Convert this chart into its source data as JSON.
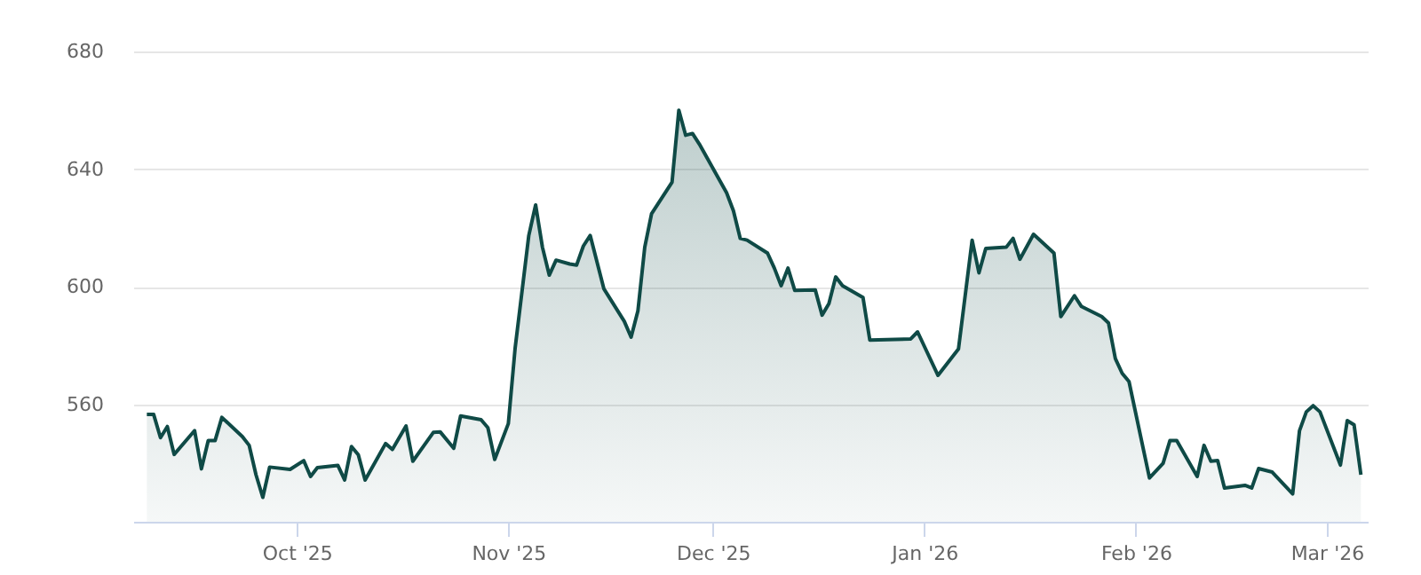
{
  "chart_data": {
    "type": "area",
    "color": "#0f4a46",
    "marker": "none",
    "line_style": "solid",
    "grid": "y",
    "xlim": [
      "2025-09-07",
      "2026-03-07"
    ],
    "xticks": [
      {
        "value": "2025-10-01",
        "label": "Oct '25"
      },
      {
        "value": "2025-11-01",
        "label": "Nov '25"
      },
      {
        "value": "2025-12-01",
        "label": "Dec '25"
      },
      {
        "value": "2026-01-01",
        "label": "Jan '26"
      },
      {
        "value": "2026-02-01",
        "label": "Feb '26"
      },
      {
        "value": "2026-03-01",
        "label": "Mar '26"
      }
    ],
    "ylim": [
      520,
      680
    ],
    "yticks": [
      560,
      600,
      640,
      680
    ],
    "x": [
      "2025-09-09",
      "2025-09-10",
      "2025-09-11",
      "2025-09-12",
      "2025-09-13",
      "2025-09-16",
      "2025-09-17",
      "2025-09-18",
      "2025-09-19",
      "2025-09-20",
      "2025-09-23",
      "2025-09-24",
      "2025-09-25",
      "2025-09-26",
      "2025-09-27",
      "2025-09-30",
      "2025-10-02",
      "2025-10-03",
      "2025-10-04",
      "2025-10-07",
      "2025-10-08",
      "2025-10-09",
      "2025-10-10",
      "2025-10-11",
      "2025-10-14",
      "2025-10-15",
      "2025-10-17",
      "2025-10-18",
      "2025-10-21",
      "2025-10-22",
      "2025-10-24",
      "2025-10-25",
      "2025-10-28",
      "2025-10-29",
      "2025-10-30",
      "2025-11-01",
      "2025-11-02",
      "2025-11-04",
      "2025-11-05",
      "2025-11-06",
      "2025-11-07",
      "2025-11-08",
      "2025-11-10",
      "2025-11-11",
      "2025-11-12",
      "2025-11-13",
      "2025-11-15",
      "2025-11-18",
      "2025-11-19",
      "2025-11-20",
      "2025-11-21",
      "2025-11-22",
      "2025-11-25",
      "2025-11-26",
      "2025-11-27",
      "2025-11-28",
      "2025-11-29",
      "2025-12-03",
      "2025-12-04",
      "2025-12-05",
      "2025-12-06",
      "2025-12-09",
      "2025-12-10",
      "2025-12-11",
      "2025-12-12",
      "2025-12-13",
      "2025-12-16",
      "2025-12-17",
      "2025-12-18",
      "2025-12-19",
      "2025-12-20",
      "2025-12-23",
      "2025-12-24",
      "2025-12-30",
      "2025-12-31",
      "2026-01-03",
      "2026-01-06",
      "2026-01-08",
      "2026-01-09",
      "2026-01-10",
      "2026-01-13",
      "2026-01-14",
      "2026-01-15",
      "2026-01-17",
      "2026-01-20",
      "2026-01-21",
      "2026-01-23",
      "2026-01-24",
      "2026-01-27",
      "2026-01-28",
      "2026-01-29",
      "2026-01-30",
      "2026-01-31",
      "2026-02-03",
      "2026-02-05",
      "2026-02-06",
      "2026-02-07",
      "2026-02-10",
      "2026-02-11",
      "2026-02-12",
      "2026-02-13",
      "2026-02-14",
      "2026-02-17",
      "2026-02-18",
      "2026-02-19",
      "2026-02-21",
      "2026-02-24",
      "2026-02-25",
      "2026-02-26",
      "2026-02-27",
      "2026-02-28",
      "2026-03-03",
      "2026-03-04",
      "2026-03-05",
      "2026-03-06"
    ],
    "values": [
      556.5,
      556.5,
      548.6,
      552.4,
      542.9,
      551,
      538,
      547.6,
      547.6,
      555.5,
      549,
      546,
      536,
      528.3,
      538.6,
      537.8,
      540.8,
      535.4,
      538.4,
      539.2,
      534.2,
      545.6,
      542.8,
      534.2,
      546.6,
      544.6,
      552.6,
      540.6,
      550.4,
      550.6,
      545,
      556,
      554.7,
      552,
      541.2,
      553.4,
      579.2,
      617.4,
      627.8,
      613.4,
      603.9,
      609,
      607.7,
      607.3,
      613.8,
      617.4,
      599.3,
      588.2,
      582.8,
      591.8,
      613.4,
      624.8,
      635.5,
      660,
      651.5,
      652.1,
      648.5,
      631.9,
      625.8,
      616.4,
      615.8,
      611.4,
      606.3,
      600.3,
      606.3,
      598.7,
      598.9,
      590.3,
      594.2,
      603.3,
      600.3,
      596.3,
      581.8,
      582.2,
      584.6,
      569.8,
      578.8,
      615.8,
      604.7,
      613,
      613.4,
      616.4,
      609.3,
      617.8,
      611.4,
      589.8,
      596.9,
      593.3,
      589.8,
      587.6,
      575.5,
      570.5,
      567.7,
      534.9,
      539.9,
      547.6,
      547.6,
      535.4,
      546,
      540.6,
      540.8,
      531.5,
      532.4,
      531.5,
      538.1,
      536.9,
      529.5,
      551,
      557.4,
      559.5,
      557.4,
      539.3,
      554.4,
      553,
      536
    ]
  }
}
